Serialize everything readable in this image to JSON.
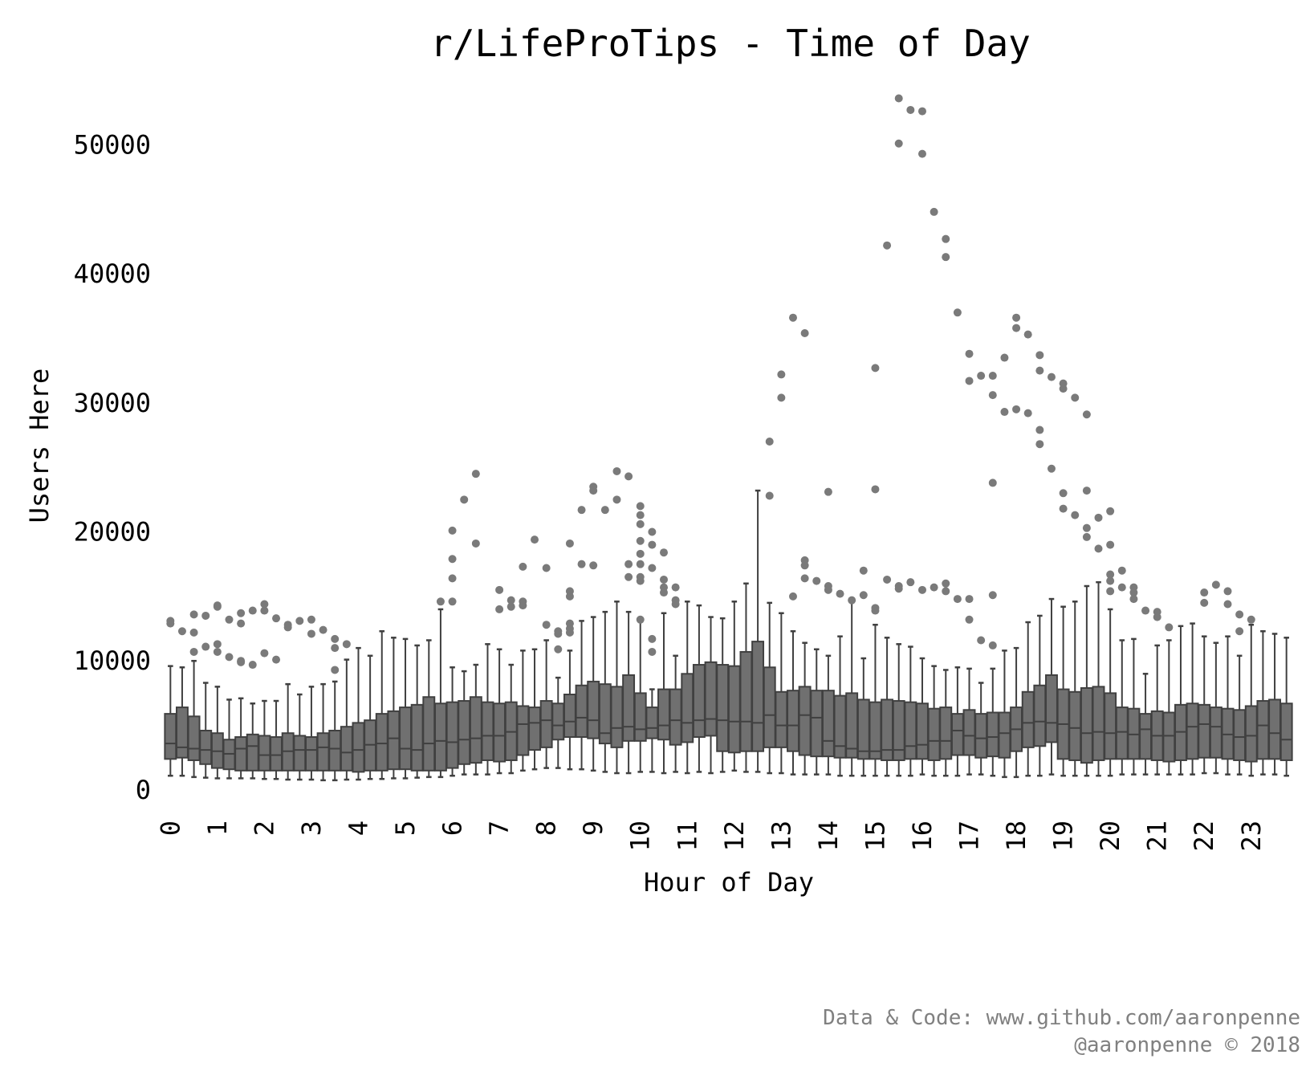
{
  "chart_data": {
    "type": "box",
    "title": "r/LifeProTips - Time of Day",
    "xlabel": "Hour of Day",
    "ylabel": "Users Here",
    "ylim": [
      -1000,
      55000
    ],
    "yticks": [
      0,
      10000,
      20000,
      30000,
      40000,
      50000
    ],
    "xticks": [
      "0",
      "1",
      "2",
      "3",
      "4",
      "5",
      "6",
      "7",
      "8",
      "9",
      "10",
      "11",
      "12",
      "13",
      "14",
      "15",
      "16",
      "17",
      "18",
      "19",
      "20",
      "21",
      "22",
      "23"
    ],
    "bins_per_hour": 4,
    "box_color": "#707070",
    "edge_color": "#404040",
    "outlier_color": "#7a7a7a",
    "grid": false,
    "boxes": [
      {
        "x": 0.0,
        "q1": 2400,
        "med": 3600,
        "q3": 5900,
        "lo": 1100,
        "hi": 9600,
        "out": [
          13100,
          12900
        ]
      },
      {
        "x": 0.25,
        "q1": 2500,
        "med": 3300,
        "q3": 6400,
        "lo": 1100,
        "hi": 9500,
        "out": [
          12300
        ]
      },
      {
        "x": 0.5,
        "q1": 2300,
        "med": 3200,
        "q3": 5700,
        "lo": 1000,
        "hi": 10000,
        "out": [
          13600,
          12200,
          10700
        ]
      },
      {
        "x": 0.75,
        "q1": 2000,
        "med": 3100,
        "q3": 4600,
        "lo": 950,
        "hi": 8300,
        "out": [
          13500,
          11100
        ]
      },
      {
        "x": 1.0,
        "q1": 1700,
        "med": 3000,
        "q3": 4400,
        "lo": 900,
        "hi": 8000,
        "out": [
          14300,
          14200,
          11300,
          10700
        ]
      },
      {
        "x": 1.25,
        "q1": 1600,
        "med": 2800,
        "q3": 3900,
        "lo": 900,
        "hi": 7000,
        "out": [
          13200,
          10300
        ]
      },
      {
        "x": 1.5,
        "q1": 1500,
        "med": 3200,
        "q3": 4100,
        "lo": 900,
        "hi": 7100,
        "out": [
          13700,
          12900,
          10000,
          9900
        ]
      },
      {
        "x": 1.75,
        "q1": 1500,
        "med": 3400,
        "q3": 4300,
        "lo": 900,
        "hi": 6700,
        "out": [
          13900,
          9700
        ]
      },
      {
        "x": 2.0,
        "q1": 1500,
        "med": 2700,
        "q3": 4200,
        "lo": 850,
        "hi": 6900,
        "out": [
          14400,
          13900,
          10600
        ]
      },
      {
        "x": 2.25,
        "q1": 1500,
        "med": 2700,
        "q3": 4100,
        "lo": 850,
        "hi": 6900,
        "out": [
          13300,
          10100
        ]
      },
      {
        "x": 2.5,
        "q1": 1500,
        "med": 3000,
        "q3": 4400,
        "lo": 800,
        "hi": 8200,
        "out": [
          12800,
          12600
        ]
      },
      {
        "x": 2.75,
        "q1": 1500,
        "med": 3100,
        "q3": 4200,
        "lo": 800,
        "hi": 7400,
        "out": [
          13100
        ]
      },
      {
        "x": 3.0,
        "q1": 1500,
        "med": 3100,
        "q3": 4100,
        "lo": 800,
        "hi": 8000,
        "out": [
          13200,
          12100
        ]
      },
      {
        "x": 3.25,
        "q1": 1500,
        "med": 3300,
        "q3": 4400,
        "lo": 750,
        "hi": 8200,
        "out": [
          12400
        ]
      },
      {
        "x": 3.5,
        "q1": 1500,
        "med": 3200,
        "q3": 4600,
        "lo": 750,
        "hi": 8400,
        "out": [
          11700,
          11000,
          9300
        ]
      },
      {
        "x": 3.75,
        "q1": 1500,
        "med": 2900,
        "q3": 4900,
        "lo": 800,
        "hi": 10100,
        "out": [
          11300
        ]
      },
      {
        "x": 4.0,
        "q1": 1400,
        "med": 3100,
        "q3": 5200,
        "lo": 800,
        "hi": 11000,
        "out": []
      },
      {
        "x": 4.25,
        "q1": 1500,
        "med": 3500,
        "q3": 5400,
        "lo": 850,
        "hi": 10400,
        "out": []
      },
      {
        "x": 4.5,
        "q1": 1500,
        "med": 3600,
        "q3": 5900,
        "lo": 850,
        "hi": 12300,
        "out": []
      },
      {
        "x": 4.75,
        "q1": 1600,
        "med": 4000,
        "q3": 6100,
        "lo": 900,
        "hi": 11800,
        "out": []
      },
      {
        "x": 5.0,
        "q1": 1600,
        "med": 3200,
        "q3": 6400,
        "lo": 900,
        "hi": 11700,
        "out": []
      },
      {
        "x": 5.25,
        "q1": 1500,
        "med": 3100,
        "q3": 6600,
        "lo": 950,
        "hi": 11200,
        "out": []
      },
      {
        "x": 5.5,
        "q1": 1500,
        "med": 3600,
        "q3": 7200,
        "lo": 1000,
        "hi": 11600,
        "out": []
      },
      {
        "x": 5.75,
        "q1": 1500,
        "med": 3800,
        "q3": 6700,
        "lo": 1000,
        "hi": 14000,
        "out": [
          14600
        ]
      },
      {
        "x": 6.0,
        "q1": 1700,
        "med": 3700,
        "q3": 6800,
        "lo": 1100,
        "hi": 9500,
        "out": [
          20100,
          17900,
          16400,
          14600
        ]
      },
      {
        "x": 6.25,
        "q1": 2000,
        "med": 3900,
        "q3": 6900,
        "lo": 1200,
        "hi": 9200,
        "out": [
          22500
        ]
      },
      {
        "x": 6.5,
        "q1": 2100,
        "med": 4000,
        "q3": 7200,
        "lo": 1200,
        "hi": 9700,
        "out": [
          24500,
          19100
        ]
      },
      {
        "x": 6.75,
        "q1": 2300,
        "med": 4200,
        "q3": 6800,
        "lo": 1200,
        "hi": 11300,
        "out": []
      },
      {
        "x": 7.0,
        "q1": 2200,
        "med": 4200,
        "q3": 6700,
        "lo": 1300,
        "hi": 10900,
        "out": [
          15500,
          14000
        ]
      },
      {
        "x": 7.25,
        "q1": 2300,
        "med": 4500,
        "q3": 6800,
        "lo": 1300,
        "hi": 9700,
        "out": [
          14700,
          14200
        ]
      },
      {
        "x": 7.5,
        "q1": 2700,
        "med": 5100,
        "q3": 6500,
        "lo": 1500,
        "hi": 10800,
        "out": [
          17300,
          14600,
          14300
        ]
      },
      {
        "x": 7.75,
        "q1": 3100,
        "med": 5200,
        "q3": 6400,
        "lo": 1600,
        "hi": 10900,
        "out": [
          19400
        ]
      },
      {
        "x": 8.0,
        "q1": 3300,
        "med": 5400,
        "q3": 6900,
        "lo": 1700,
        "hi": 11600,
        "out": [
          17200,
          12800
        ]
      },
      {
        "x": 8.25,
        "q1": 3900,
        "med": 5000,
        "q3": 6700,
        "lo": 1700,
        "hi": 8700,
        "out": [
          12300,
          12100,
          10900
        ]
      },
      {
        "x": 8.5,
        "q1": 4100,
        "med": 5300,
        "q3": 7400,
        "lo": 1600,
        "hi": 10800,
        "out": [
          19100,
          15400,
          15000,
          12900,
          12500,
          12200
        ]
      },
      {
        "x": 8.75,
        "q1": 4100,
        "med": 5600,
        "q3": 8100,
        "lo": 1600,
        "hi": 13100,
        "out": [
          21700,
          17500
        ]
      },
      {
        "x": 9.0,
        "q1": 4000,
        "med": 5400,
        "q3": 8400,
        "lo": 1500,
        "hi": 13400,
        "out": [
          23500,
          23200,
          17400
        ]
      },
      {
        "x": 9.25,
        "q1": 3600,
        "med": 4400,
        "q3": 8200,
        "lo": 1400,
        "hi": 13800,
        "out": [
          21700
        ]
      },
      {
        "x": 9.5,
        "q1": 3300,
        "med": 4800,
        "q3": 8000,
        "lo": 1300,
        "hi": 14600,
        "out": [
          24700,
          22500
        ]
      },
      {
        "x": 9.75,
        "q1": 3800,
        "med": 4900,
        "q3": 8900,
        "lo": 1300,
        "hi": 13800,
        "out": [
          24300,
          17500,
          16500
        ]
      },
      {
        "x": 10.0,
        "q1": 3800,
        "med": 4700,
        "q3": 7500,
        "lo": 1400,
        "hi": 13300,
        "out": [
          22000,
          21300,
          20600,
          19300,
          18300,
          17500,
          16500,
          16200,
          13200
        ]
      },
      {
        "x": 10.25,
        "q1": 4000,
        "med": 4800,
        "q3": 6400,
        "lo": 1400,
        "hi": 7800,
        "out": [
          20000,
          19000,
          17200,
          11700,
          10700
        ]
      },
      {
        "x": 10.5,
        "q1": 3900,
        "med": 5000,
        "q3": 7800,
        "lo": 1300,
        "hi": 13700,
        "out": [
          18400,
          16300,
          15700,
          15300
        ]
      },
      {
        "x": 10.75,
        "q1": 3500,
        "med": 5400,
        "q3": 7800,
        "lo": 1400,
        "hi": 10400,
        "out": [
          15700,
          14700,
          14400
        ]
      },
      {
        "x": 11.0,
        "q1": 3700,
        "med": 5200,
        "q3": 9000,
        "lo": 1300,
        "hi": 14600,
        "out": []
      },
      {
        "x": 11.25,
        "q1": 4100,
        "med": 5400,
        "q3": 9700,
        "lo": 1400,
        "hi": 14300,
        "out": []
      },
      {
        "x": 11.5,
        "q1": 4200,
        "med": 5500,
        "q3": 9900,
        "lo": 1300,
        "hi": 13400,
        "out": []
      },
      {
        "x": 11.75,
        "q1": 3000,
        "med": 5400,
        "q3": 9700,
        "lo": 1400,
        "hi": 13300,
        "out": []
      },
      {
        "x": 12.0,
        "q1": 2900,
        "med": 5300,
        "q3": 9600,
        "lo": 1500,
        "hi": 14600,
        "out": []
      },
      {
        "x": 12.25,
        "q1": 3000,
        "med": 5300,
        "q3": 10700,
        "lo": 1400,
        "hi": 16000,
        "out": []
      },
      {
        "x": 12.5,
        "q1": 3000,
        "med": 5200,
        "q3": 11500,
        "lo": 1400,
        "hi": 23200,
        "out": []
      },
      {
        "x": 12.75,
        "q1": 3300,
        "med": 5800,
        "q3": 9500,
        "lo": 1300,
        "hi": 14500,
        "out": [
          27000,
          22800
        ]
      },
      {
        "x": 13.0,
        "q1": 3300,
        "med": 5000,
        "q3": 7600,
        "lo": 1300,
        "hi": 13700,
        "out": [
          32200,
          30400
        ]
      },
      {
        "x": 13.25,
        "q1": 3000,
        "med": 5000,
        "q3": 7700,
        "lo": 1200,
        "hi": 12300,
        "out": [
          36600,
          15000
        ]
      },
      {
        "x": 13.5,
        "q1": 2700,
        "med": 5800,
        "q3": 8000,
        "lo": 1200,
        "hi": 11400,
        "out": [
          35400,
          17800,
          17400,
          16400
        ]
      },
      {
        "x": 13.75,
        "q1": 2600,
        "med": 5600,
        "q3": 7700,
        "lo": 1200,
        "hi": 10900,
        "out": [
          16200
        ]
      },
      {
        "x": 14.0,
        "q1": 2600,
        "med": 3800,
        "q3": 7700,
        "lo": 1200,
        "hi": 10400,
        "out": [
          23100,
          15800,
          15500
        ]
      },
      {
        "x": 14.25,
        "q1": 2500,
        "med": 3400,
        "q3": 7300,
        "lo": 1100,
        "hi": 11900,
        "out": [
          15200
        ]
      },
      {
        "x": 14.5,
        "q1": 2500,
        "med": 3200,
        "q3": 7500,
        "lo": 1100,
        "hi": 14700,
        "out": [
          14700
        ]
      },
      {
        "x": 14.75,
        "q1": 2400,
        "med": 3000,
        "q3": 7000,
        "lo": 1100,
        "hi": 10200,
        "out": [
          17000,
          15100
        ]
      },
      {
        "x": 15.0,
        "q1": 2400,
        "med": 3000,
        "q3": 6800,
        "lo": 1100,
        "hi": 12800,
        "out": [
          32700,
          23300,
          14100,
          13900
        ]
      },
      {
        "x": 15.25,
        "q1": 2300,
        "med": 3100,
        "q3": 7000,
        "lo": 1100,
        "hi": 11800,
        "out": [
          42200,
          16300
        ]
      },
      {
        "x": 15.5,
        "q1": 2300,
        "med": 3100,
        "q3": 6900,
        "lo": 1100,
        "hi": 11300,
        "out": [
          53600,
          50100,
          15800,
          15600
        ]
      },
      {
        "x": 15.75,
        "q1": 2400,
        "med": 3400,
        "q3": 6800,
        "lo": 1100,
        "hi": 11100,
        "out": [
          52700,
          16100
        ]
      },
      {
        "x": 16.0,
        "q1": 2400,
        "med": 3500,
        "q3": 6700,
        "lo": 1200,
        "hi": 10200,
        "out": [
          52600,
          49300,
          15500
        ]
      },
      {
        "x": 16.25,
        "q1": 2300,
        "med": 3800,
        "q3": 6300,
        "lo": 1100,
        "hi": 9600,
        "out": [
          44800,
          15700
        ]
      },
      {
        "x": 16.5,
        "q1": 2400,
        "med": 3800,
        "q3": 6400,
        "lo": 1100,
        "hi": 9300,
        "out": [
          42700,
          41300,
          16000,
          15400
        ]
      },
      {
        "x": 16.75,
        "q1": 2700,
        "med": 4600,
        "q3": 5900,
        "lo": 1100,
        "hi": 9500,
        "out": [
          37000,
          14800
        ]
      },
      {
        "x": 17.0,
        "q1": 2700,
        "med": 4200,
        "q3": 6200,
        "lo": 1200,
        "hi": 9400,
        "out": [
          33800,
          31700,
          14800,
          13200
        ]
      },
      {
        "x": 17.25,
        "q1": 2500,
        "med": 4000,
        "q3": 5900,
        "lo": 1200,
        "hi": 8300,
        "out": [
          32100,
          11600
        ]
      },
      {
        "x": 17.5,
        "q1": 2600,
        "med": 4100,
        "q3": 6000,
        "lo": 1100,
        "hi": 9400,
        "out": [
          32100,
          30600,
          23800,
          15100,
          11200
        ]
      },
      {
        "x": 17.75,
        "q1": 2500,
        "med": 4400,
        "q3": 6000,
        "lo": 1000,
        "hi": 10800,
        "out": [
          33500,
          29300
        ]
      },
      {
        "x": 18.0,
        "q1": 3000,
        "med": 4700,
        "q3": 6400,
        "lo": 1000,
        "hi": 11000,
        "out": [
          36600,
          35800,
          29500
        ]
      },
      {
        "x": 18.25,
        "q1": 3300,
        "med": 5200,
        "q3": 7600,
        "lo": 1100,
        "hi": 13000,
        "out": [
          35300,
          29200
        ]
      },
      {
        "x": 18.5,
        "q1": 3400,
        "med": 5300,
        "q3": 8100,
        "lo": 1100,
        "hi": 13500,
        "out": [
          33700,
          32500,
          27900,
          26800
        ]
      },
      {
        "x": 18.75,
        "q1": 3700,
        "med": 5200,
        "q3": 8900,
        "lo": 1200,
        "hi": 14800,
        "out": [
          32000,
          24900
        ]
      },
      {
        "x": 19.0,
        "q1": 2400,
        "med": 5100,
        "q3": 7800,
        "lo": 1100,
        "hi": 14200,
        "out": [
          31500,
          31100,
          23000,
          21800
        ]
      },
      {
        "x": 19.25,
        "q1": 2300,
        "med": 4800,
        "q3": 7600,
        "lo": 1100,
        "hi": 14600,
        "out": [
          30400,
          21300
        ]
      },
      {
        "x": 19.5,
        "q1": 2100,
        "med": 4400,
        "q3": 7900,
        "lo": 1100,
        "hi": 15800,
        "out": [
          29100,
          23200,
          20300,
          19600
        ]
      },
      {
        "x": 19.75,
        "q1": 2300,
        "med": 4500,
        "q3": 8000,
        "lo": 1100,
        "hi": 16100,
        "out": [
          21100,
          18700
        ]
      },
      {
        "x": 20.0,
        "q1": 2400,
        "med": 4400,
        "q3": 7500,
        "lo": 1100,
        "hi": 14000,
        "out": [
          21600,
          19000,
          16700,
          16200,
          15400
        ]
      },
      {
        "x": 20.25,
        "q1": 2400,
        "med": 4500,
        "q3": 6400,
        "lo": 1200,
        "hi": 11600,
        "out": [
          17000,
          15700
        ]
      },
      {
        "x": 20.5,
        "q1": 2400,
        "med": 4300,
        "q3": 6300,
        "lo": 1200,
        "hi": 11700,
        "out": [
          15700,
          15300,
          14800
        ]
      },
      {
        "x": 20.75,
        "q1": 2400,
        "med": 4700,
        "q3": 5900,
        "lo": 1200,
        "hi": 9000,
        "out": [
          13900
        ]
      },
      {
        "x": 21.0,
        "q1": 2300,
        "med": 4200,
        "q3": 6100,
        "lo": 1200,
        "hi": 11200,
        "out": [
          13800,
          13400
        ]
      },
      {
        "x": 21.25,
        "q1": 2200,
        "med": 4200,
        "q3": 6000,
        "lo": 1200,
        "hi": 11600,
        "out": [
          12600
        ]
      },
      {
        "x": 21.5,
        "q1": 2300,
        "med": 4500,
        "q3": 6600,
        "lo": 1200,
        "hi": 12700,
        "out": []
      },
      {
        "x": 21.75,
        "q1": 2400,
        "med": 4900,
        "q3": 6700,
        "lo": 1200,
        "hi": 12900,
        "out": []
      },
      {
        "x": 22.0,
        "q1": 2500,
        "med": 5100,
        "q3": 6600,
        "lo": 1300,
        "hi": 11900,
        "out": [
          15300,
          14500
        ]
      },
      {
        "x": 22.25,
        "q1": 2500,
        "med": 4900,
        "q3": 6400,
        "lo": 1300,
        "hi": 11400,
        "out": [
          15900
        ]
      },
      {
        "x": 22.5,
        "q1": 2400,
        "med": 4300,
        "q3": 6300,
        "lo": 1200,
        "hi": 11900,
        "out": [
          15400,
          14400
        ]
      },
      {
        "x": 22.75,
        "q1": 2300,
        "med": 4100,
        "q3": 6200,
        "lo": 1200,
        "hi": 10400,
        "out": [
          13600,
          12300
        ]
      },
      {
        "x": 23.0,
        "q1": 2200,
        "med": 4200,
        "q3": 6500,
        "lo": 1100,
        "hi": 12800,
        "out": [
          13200
        ]
      },
      {
        "x": 23.25,
        "q1": 2400,
        "med": 5000,
        "q3": 6900,
        "lo": 1200,
        "hi": 12300,
        "out": []
      },
      {
        "x": 23.5,
        "q1": 2400,
        "med": 4400,
        "q3": 7000,
        "lo": 1200,
        "hi": 12100,
        "out": []
      },
      {
        "x": 23.75,
        "q1": 2300,
        "med": 3900,
        "q3": 6700,
        "lo": 1100,
        "hi": 11800,
        "out": []
      }
    ]
  },
  "credit": {
    "line1": "Data & Code: www.github.com/aaronpenne",
    "line2": "@aaronpenne © 2018"
  }
}
